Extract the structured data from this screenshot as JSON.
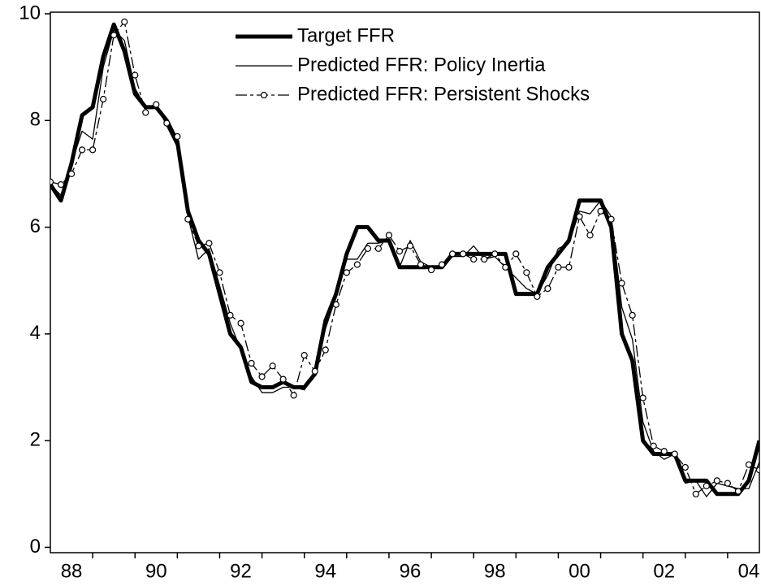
{
  "chart_data": {
    "type": "line",
    "x": [
      1988,
      1988.25,
      1988.5,
      1988.75,
      1989,
      1989.25,
      1989.5,
      1989.75,
      1990,
      1990.25,
      1990.5,
      1990.75,
      1991,
      1991.25,
      1991.5,
      1991.75,
      1992,
      1992.25,
      1992.5,
      1992.75,
      1993,
      1993.25,
      1993.5,
      1993.75,
      1994,
      1994.25,
      1994.5,
      1994.75,
      1995,
      1995.25,
      1995.5,
      1995.75,
      1996,
      1996.25,
      1996.5,
      1996.75,
      1997,
      1997.25,
      1997.5,
      1997.75,
      1998,
      1998.25,
      1998.5,
      1998.75,
      1999,
      1999.25,
      1999.5,
      1999.75,
      2000,
      2000.25,
      2000.5,
      2000.75,
      2001,
      2001.25,
      2001.5,
      2001.75,
      2002,
      2002.25,
      2002.5,
      2002.75,
      2003,
      2003.25,
      2003.5,
      2003.75,
      2004,
      2004.25,
      2004.5,
      2004.75
    ],
    "series": [
      {
        "name": "Target FFR",
        "color": "#000000",
        "line_width": 5,
        "dash": "none",
        "marker": false,
        "values": [
          6.8,
          6.5,
          7.2,
          8.1,
          8.25,
          9.2,
          9.8,
          9.3,
          8.5,
          8.25,
          8.25,
          8.0,
          7.6,
          6.3,
          5.75,
          5.5,
          4.75,
          4.0,
          3.75,
          3.1,
          3.0,
          3.0,
          3.1,
          3.0,
          3.0,
          3.25,
          4.25,
          4.75,
          5.5,
          6.0,
          6.0,
          5.75,
          5.75,
          5.25,
          5.25,
          5.25,
          5.25,
          5.25,
          5.5,
          5.5,
          5.5,
          5.5,
          5.5,
          5.5,
          4.75,
          4.75,
          4.75,
          5.25,
          5.5,
          5.75,
          6.5,
          6.5,
          6.5,
          6.0,
          4.0,
          3.5,
          2.0,
          1.75,
          1.75,
          1.75,
          1.25,
          1.25,
          1.25,
          1.0,
          1.0,
          1.0,
          1.25,
          2.0
        ]
      },
      {
        "name": "Predicted FFR: Policy Inertia",
        "color": "#000000",
        "line_width": 1.3,
        "dash": "none",
        "marker": false,
        "values": [
          6.8,
          6.6,
          7.2,
          7.8,
          7.65,
          9.0,
          9.7,
          9.5,
          8.6,
          8.25,
          8.3,
          7.9,
          7.5,
          6.2,
          5.4,
          5.6,
          4.9,
          4.2,
          3.7,
          3.2,
          2.9,
          2.9,
          3.0,
          3.0,
          2.95,
          3.3,
          4.1,
          4.7,
          5.4,
          5.4,
          5.7,
          5.7,
          5.75,
          5.25,
          5.75,
          5.35,
          5.25,
          5.25,
          5.45,
          5.45,
          5.65,
          5.4,
          5.45,
          5.25,
          5.05,
          4.85,
          4.75,
          5.1,
          5.6,
          5.7,
          6.3,
          6.25,
          6.5,
          6.2,
          4.5,
          3.9,
          2.35,
          1.8,
          1.65,
          1.75,
          1.2,
          1.25,
          0.95,
          1.2,
          1.15,
          1.1,
          1.1,
          1.6
        ]
      },
      {
        "name": "Predicted FFR: Persistent Shocks",
        "color": "#000000",
        "line_width": 1.3,
        "dash": "14 4 4 4",
        "marker": true,
        "values": [
          6.85,
          6.8,
          7.0,
          7.45,
          7.45,
          8.4,
          9.6,
          9.85,
          8.85,
          8.15,
          8.3,
          7.95,
          7.7,
          6.15,
          5.65,
          5.7,
          5.15,
          4.35,
          4.2,
          3.45,
          3.2,
          3.4,
          3.15,
          2.85,
          3.6,
          3.3,
          3.7,
          4.55,
          5.15,
          5.3,
          5.6,
          5.6,
          5.85,
          5.55,
          5.65,
          5.3,
          5.2,
          5.3,
          5.5,
          5.5,
          5.4,
          5.4,
          5.5,
          5.25,
          5.5,
          5.15,
          4.7,
          4.85,
          5.25,
          5.25,
          6.2,
          5.85,
          6.3,
          6.15,
          4.95,
          4.35,
          2.8,
          1.9,
          1.8,
          1.75,
          1.5,
          1.0,
          1.15,
          1.25,
          1.2,
          1.05,
          1.55,
          1.45
        ]
      }
    ],
    "xlim": [
      1988,
      2004.75
    ],
    "xticks": [
      {
        "value": 1988.5,
        "label": "88"
      },
      {
        "value": 1990.5,
        "label": "90"
      },
      {
        "value": 1992.5,
        "label": "92"
      },
      {
        "value": 1994.5,
        "label": "94"
      },
      {
        "value": 1996.5,
        "label": "96"
      },
      {
        "value": 1998.5,
        "label": "98"
      },
      {
        "value": 2000.5,
        "label": "00"
      },
      {
        "value": 2002.5,
        "label": "02"
      },
      {
        "value": 2004.5,
        "label": "04"
      }
    ],
    "xminorticks": [
      1989,
      1990,
      1991,
      1992,
      1993,
      1994,
      1995,
      1996,
      1997,
      1998,
      1999,
      2000,
      2001,
      2002,
      2003,
      2004
    ],
    "ylim": [
      -0.1,
      10.03
    ],
    "yticks": [
      0,
      2,
      4,
      6,
      8,
      10
    ],
    "grid": false,
    "legend": "top-center"
  }
}
